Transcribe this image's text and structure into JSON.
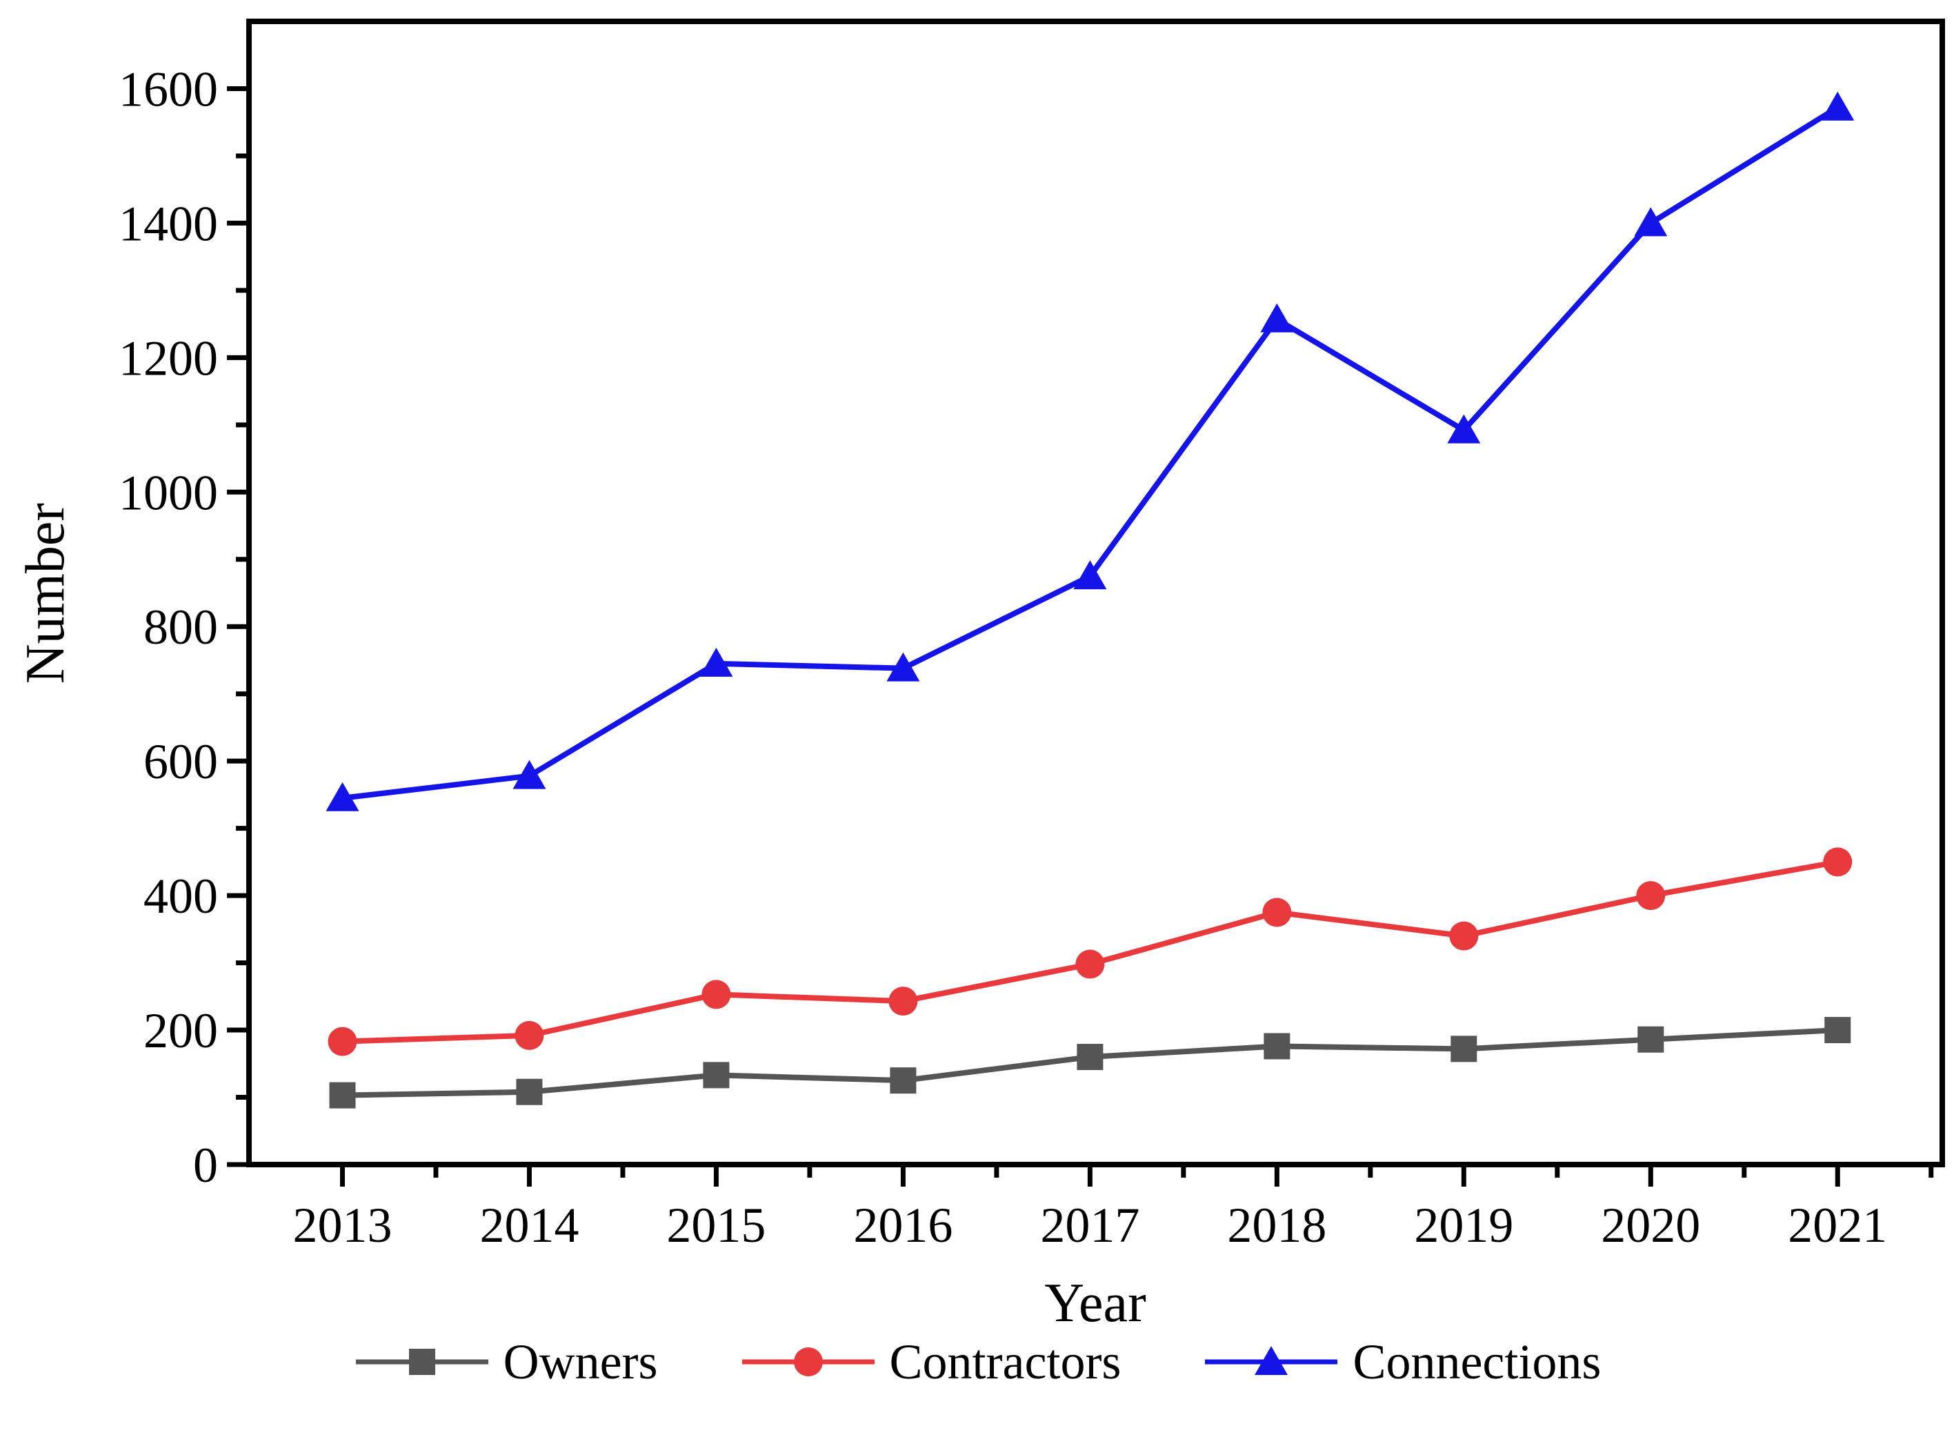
{
  "chart_data": {
    "type": "line",
    "title": "",
    "xlabel": "Year",
    "ylabel": "Number",
    "x": [
      2013,
      2014,
      2015,
      2016,
      2017,
      2018,
      2019,
      2020,
      2021
    ],
    "x_tick_labels": [
      "2013",
      "2014",
      "2015",
      "2016",
      "2017",
      "2018",
      "2019",
      "2020",
      "2021"
    ],
    "y_ticks": [
      0,
      200,
      400,
      600,
      800,
      1000,
      1200,
      1400,
      1600
    ],
    "y_tick_labels": [
      "0",
      "200",
      "400",
      "600",
      "800",
      "1000",
      "1200",
      "1400",
      "1600"
    ],
    "y_minor_ticks": [
      100,
      300,
      500,
      700,
      900,
      1100,
      1300,
      1500
    ],
    "x_minor_ticks": [
      2013.5,
      2014.5,
      2015.5,
      2016.5,
      2017.5,
      2018.5,
      2019.5,
      2020.5,
      2021.5
    ],
    "ylim": [
      0,
      1700
    ],
    "xlim": [
      2012.5,
      2021.56
    ],
    "grid": false,
    "legend_position": "bottom",
    "axis_color": "#000000",
    "series": [
      {
        "name": "Owners",
        "color": "#555555",
        "marker": "square",
        "values": [
          103,
          108,
          133,
          125,
          160,
          176,
          172,
          186,
          200
        ]
      },
      {
        "name": "Contractors",
        "color": "#E8393C",
        "marker": "circle",
        "values": [
          183,
          192,
          253,
          243,
          298,
          375,
          340,
          400,
          450
        ]
      },
      {
        "name": "Connections",
        "color": "#1414E8",
        "marker": "triangle",
        "values": [
          545,
          578,
          745,
          738,
          875,
          1257,
          1092,
          1400,
          1572
        ]
      }
    ]
  }
}
